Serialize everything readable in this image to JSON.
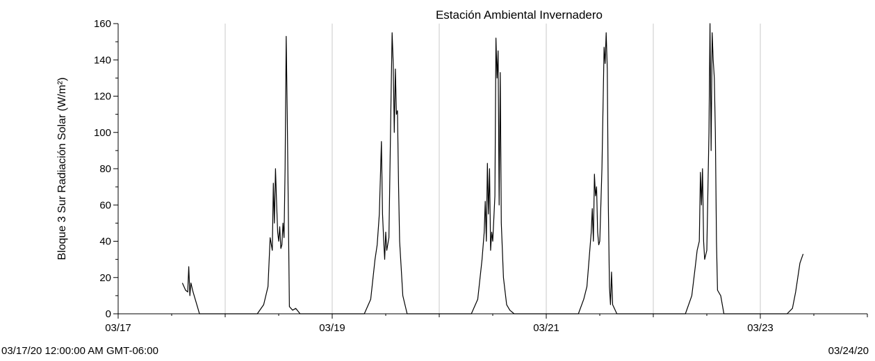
{
  "chart_data": {
    "type": "line",
    "title": "Estación Ambiental Invernadero",
    "ylabel": "Bloque 3 Sur Radiación Solar (W/m²)",
    "xlabel": "",
    "ylim": [
      0,
      160
    ],
    "y_ticks": [
      "0",
      "20",
      "40",
      "60",
      "80",
      "100",
      "120",
      "140",
      "160"
    ],
    "xlim_days": [
      0,
      7
    ],
    "x_ticks": [
      {
        "day": 0,
        "label": "03/17"
      },
      {
        "day": 2,
        "label": "03/19"
      },
      {
        "day": 4,
        "label": "03/21"
      },
      {
        "day": 6,
        "label": "03/23"
      }
    ],
    "gridlines_days": [
      1,
      2,
      3,
      4,
      5,
      6
    ],
    "grid": "vertical",
    "footer_left": "03/17/20 12:00:00 AM GMT-06:00",
    "footer_right": "03/24/20",
    "line_color": "#000000",
    "grid_color": "#c8c8c8",
    "series": [
      {
        "name": "",
        "points": [
          [
            0.6,
            17
          ],
          [
            0.63,
            13
          ],
          [
            0.65,
            12
          ],
          [
            0.66,
            26
          ],
          [
            0.67,
            10
          ],
          [
            0.68,
            17
          ],
          [
            0.7,
            12
          ],
          [
            0.72,
            8
          ],
          [
            0.74,
            4
          ],
          [
            0.76,
            0
          ],
          [
            1.3,
            0
          ],
          [
            1.36,
            5
          ],
          [
            1.4,
            15
          ],
          [
            1.42,
            42
          ],
          [
            1.44,
            35
          ],
          [
            1.45,
            72
          ],
          [
            1.46,
            50
          ],
          [
            1.47,
            80
          ],
          [
            1.48,
            62
          ],
          [
            1.49,
            45
          ],
          [
            1.5,
            40
          ],
          [
            1.51,
            48
          ],
          [
            1.52,
            36
          ],
          [
            1.53,
            38
          ],
          [
            1.54,
            50
          ],
          [
            1.55,
            42
          ],
          [
            1.56,
            80
          ],
          [
            1.57,
            153
          ],
          [
            1.58,
            110
          ],
          [
            1.6,
            4
          ],
          [
            1.63,
            2
          ],
          [
            1.66,
            3
          ],
          [
            1.7,
            0
          ],
          [
            2.3,
            0
          ],
          [
            2.36,
            8
          ],
          [
            2.4,
            30
          ],
          [
            2.42,
            38
          ],
          [
            2.44,
            55
          ],
          [
            2.46,
            95
          ],
          [
            2.47,
            55
          ],
          [
            2.48,
            42
          ],
          [
            2.49,
            30
          ],
          [
            2.5,
            45
          ],
          [
            2.51,
            35
          ],
          [
            2.53,
            42
          ],
          [
            2.55,
            120
          ],
          [
            2.56,
            155
          ],
          [
            2.57,
            138
          ],
          [
            2.58,
            100
          ],
          [
            2.59,
            135
          ],
          [
            2.6,
            110
          ],
          [
            2.61,
            112
          ],
          [
            2.62,
            70
          ],
          [
            2.63,
            40
          ],
          [
            2.66,
            10
          ],
          [
            2.7,
            0
          ],
          [
            3.3,
            0
          ],
          [
            3.36,
            8
          ],
          [
            3.4,
            30
          ],
          [
            3.42,
            45
          ],
          [
            3.43,
            62
          ],
          [
            3.44,
            40
          ],
          [
            3.45,
            83
          ],
          [
            3.46,
            55
          ],
          [
            3.47,
            80
          ],
          [
            3.48,
            35
          ],
          [
            3.49,
            45
          ],
          [
            3.5,
            40
          ],
          [
            3.52,
            65
          ],
          [
            3.53,
            152
          ],
          [
            3.54,
            130
          ],
          [
            3.55,
            145
          ],
          [
            3.56,
            60
          ],
          [
            3.57,
            133
          ],
          [
            3.58,
            50
          ],
          [
            3.6,
            20
          ],
          [
            3.61,
            15
          ],
          [
            3.63,
            5
          ],
          [
            3.66,
            2
          ],
          [
            3.7,
            0
          ],
          [
            4.3,
            0
          ],
          [
            4.35,
            8
          ],
          [
            4.38,
            15
          ],
          [
            4.4,
            30
          ],
          [
            4.42,
            45
          ],
          [
            4.43,
            58
          ],
          [
            4.44,
            40
          ],
          [
            4.45,
            77
          ],
          [
            4.46,
            65
          ],
          [
            4.47,
            70
          ],
          [
            4.48,
            45
          ],
          [
            4.49,
            38
          ],
          [
            4.5,
            40
          ],
          [
            4.52,
            80
          ],
          [
            4.54,
            147
          ],
          [
            4.55,
            138
          ],
          [
            4.56,
            155
          ],
          [
            4.57,
            135
          ],
          [
            4.58,
            60
          ],
          [
            4.59,
            15
          ],
          [
            4.6,
            5
          ],
          [
            4.61,
            23
          ],
          [
            4.62,
            5
          ],
          [
            4.66,
            0
          ],
          [
            5.3,
            0
          ],
          [
            5.36,
            10
          ],
          [
            5.39,
            25
          ],
          [
            5.41,
            35
          ],
          [
            5.43,
            40
          ],
          [
            5.44,
            78
          ],
          [
            5.45,
            60
          ],
          [
            5.46,
            80
          ],
          [
            5.47,
            40
          ],
          [
            5.48,
            30
          ],
          [
            5.5,
            35
          ],
          [
            5.52,
            100
          ],
          [
            5.53,
            160
          ],
          [
            5.54,
            90
          ],
          [
            5.55,
            155
          ],
          [
            5.56,
            140
          ],
          [
            5.57,
            130
          ],
          [
            5.58,
            100
          ],
          [
            5.59,
            40
          ],
          [
            5.6,
            13
          ],
          [
            5.63,
            10
          ],
          [
            5.66,
            0
          ],
          [
            6.25,
            0
          ],
          [
            6.3,
            3
          ],
          [
            6.33,
            12
          ],
          [
            6.35,
            20
          ],
          [
            6.37,
            28
          ],
          [
            6.4,
            33
          ]
        ]
      }
    ]
  }
}
